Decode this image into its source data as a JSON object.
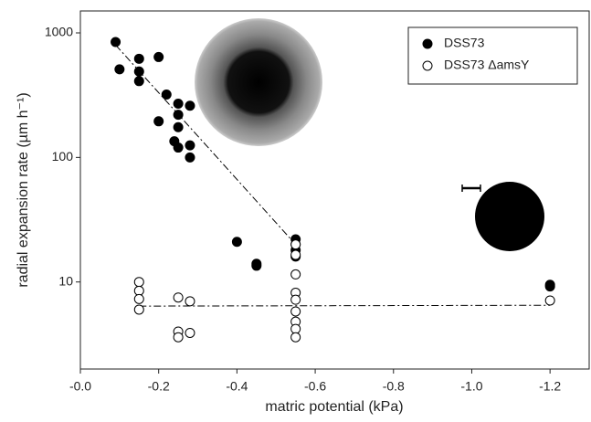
{
  "chart_data": {
    "type": "scatter",
    "x_label": "matric potential (kPa)",
    "y_label": "radial expansion rate (µm h⁻¹)",
    "xlim": [
      0,
      -1.3
    ],
    "ylim": [
      2,
      1500
    ],
    "y_log": true,
    "xticks": [
      {
        "value": 0,
        "label": "-0.0"
      },
      -0.2,
      -0.4,
      -0.6,
      -0.8,
      {
        "value": -1,
        "label": "-1.0"
      },
      -1.2
    ],
    "yticks": [
      10,
      100,
      1000
    ],
    "legend": "upper-right",
    "series": [
      {
        "name": "DSS73",
        "color": "#000000",
        "filled": true,
        "x": [
          -0.09,
          -0.1,
          -0.15,
          -0.15,
          -0.15,
          -0.2,
          -0.2,
          -0.22,
          -0.25,
          -0.25,
          -0.25,
          -0.24,
          -0.25,
          -0.28,
          -0.28,
          -0.28,
          -0.4,
          -0.45,
          -0.45,
          -0.55,
          -0.55,
          -0.55,
          -0.55,
          -1.2,
          -1.2
        ],
        "values": [
          845,
          510,
          620,
          490,
          410,
          640,
          195,
          320,
          270,
          220,
          175,
          135,
          120,
          260,
          125,
          100,
          21,
          14,
          13.5,
          22,
          20,
          18,
          16,
          9.5,
          9.2
        ],
        "fit_x": [
          -0.09,
          -0.55
        ],
        "fit_values": [
          800,
          20
        ]
      },
      {
        "name": "DSS73 ΔamsY",
        "color": "#000000",
        "filled": false,
        "x": [
          -0.15,
          -0.15,
          -0.15,
          -0.15,
          -0.25,
          -0.25,
          -0.25,
          -0.28,
          -0.28,
          -0.55,
          -0.55,
          -0.55,
          -0.55,
          -0.55,
          -0.55,
          -0.55,
          -0.55,
          -0.55,
          -1.2
        ],
        "values": [
          10,
          8.5,
          7.3,
          6,
          7.5,
          4,
          3.6,
          7,
          3.9,
          20,
          16.5,
          11.5,
          8.2,
          7.2,
          5.8,
          4.8,
          4.2,
          3.6,
          7.1
        ],
        "fit_x": [
          -0.15,
          -1.2
        ],
        "fit_values": [
          6.4,
          6.5
        ]
      }
    ]
  }
}
